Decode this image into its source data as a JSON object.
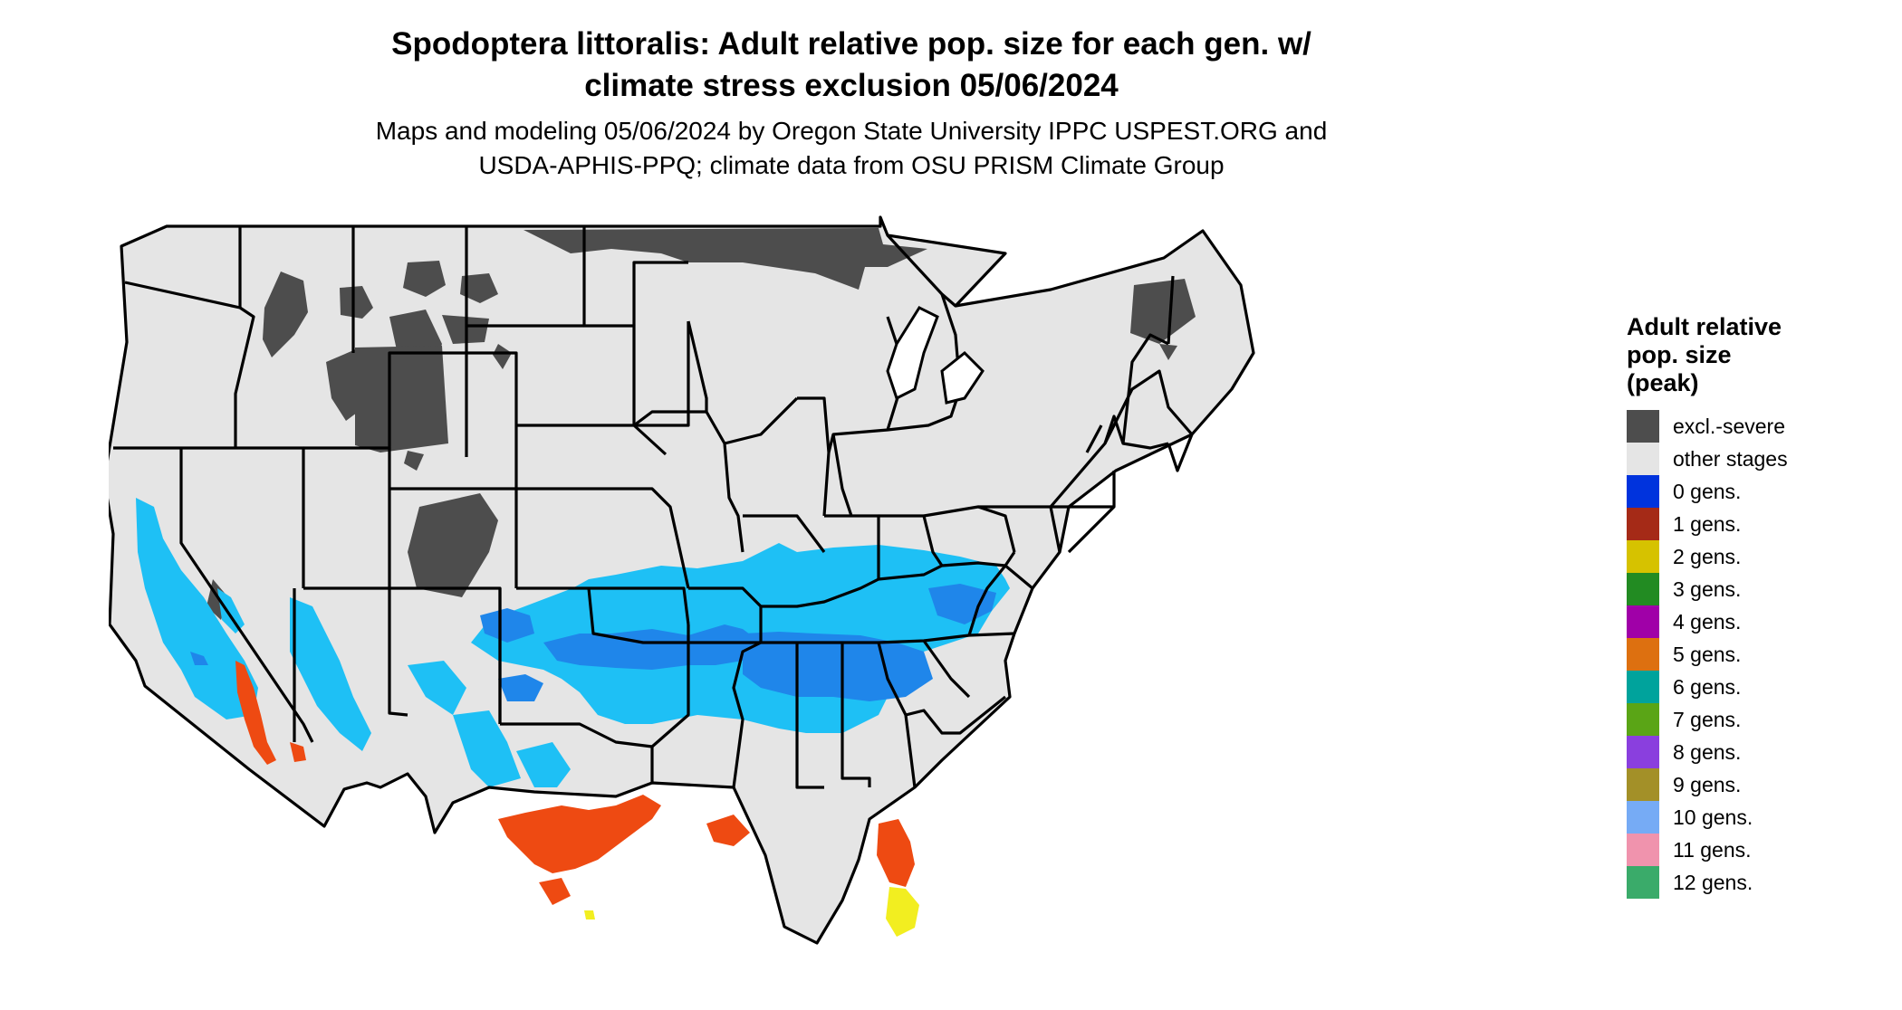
{
  "title": {
    "line1": "Spodoptera littoralis: Adult relative pop. size for each gen. w/",
    "line2": "climate stress exclusion 05/06/2024"
  },
  "subtitle": {
    "line1": "Maps and modeling 05/06/2024 by Oregon State University IPPC USPEST.ORG and",
    "line2": "USDA-APHIS-PPQ; climate data from OSU PRISM Climate Group"
  },
  "legend": {
    "title_lines": [
      "Adult relative",
      "pop. size",
      "(peak)"
    ],
    "items": [
      {
        "label": "excl.-severe",
        "color": "#4d4d4d"
      },
      {
        "label": "other stages",
        "color": "#e5e5e5"
      },
      {
        "label": "0 gens.",
        "color": "#0033dd"
      },
      {
        "label": "1 gens.",
        "color": "#a52a17"
      },
      {
        "label": "2 gens.",
        "color": "#d6c200"
      },
      {
        "label": "3 gens.",
        "color": "#228b22"
      },
      {
        "label": "4 gens.",
        "color": "#a000a8"
      },
      {
        "label": "5 gens.",
        "color": "#dd7010"
      },
      {
        "label": "6 gens.",
        "color": "#00a39c"
      },
      {
        "label": "7 gens.",
        "color": "#5aa516"
      },
      {
        "label": "8 gens.",
        "color": "#8a3fde"
      },
      {
        "label": "9 gens.",
        "color": "#a39028"
      },
      {
        "label": "10 gens.",
        "color": "#76abf5"
      },
      {
        "label": "11 gens.",
        "color": "#f093ad"
      },
      {
        "label": "12 gens.",
        "color": "#3aab6a"
      }
    ]
  },
  "map_colors": {
    "land": "#e5e5e5",
    "excluded": "#4d4d4d",
    "light_blue": "#1ec0f5",
    "mid_blue": "#1f86ea",
    "orange_red": "#ee4a12",
    "yellow": "#f2ee20",
    "state_border": "#000000"
  }
}
